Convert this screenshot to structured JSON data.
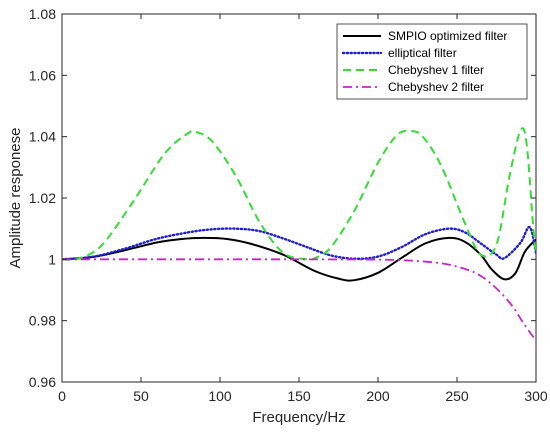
{
  "chart_data": {
    "type": "line",
    "title": "",
    "xlabel": "Frequency/Hz",
    "ylabel": "Amplitude responese",
    "xlim": [
      0,
      300
    ],
    "ylim": [
      0.96,
      1.08
    ],
    "xticks": [
      0,
      50,
      100,
      150,
      200,
      250,
      300
    ],
    "yticks": [
      0.96,
      0.98,
      1,
      1.02,
      1.04,
      1.06,
      1.08
    ],
    "xtick_labels": [
      "0",
      "50",
      "100",
      "150",
      "200",
      "250",
      "300"
    ],
    "ytick_labels": [
      "0.96",
      "0.98",
      "1",
      "1.02",
      "1.04",
      "1.06",
      "1.08"
    ],
    "grid": false,
    "legend_position": "top-right",
    "series": [
      {
        "name": "SMPIO optimized filter",
        "color": "#000000",
        "style": "solid",
        "x": [
          0,
          20,
          40,
          60,
          75,
          90,
          105,
          120,
          140,
          160,
          175,
          185,
          200,
          215,
          230,
          245,
          255,
          265,
          272,
          280,
          287,
          293,
          300
        ],
        "y": [
          1.0,
          1.0008,
          1.003,
          1.0055,
          1.0066,
          1.007,
          1.0066,
          1.005,
          1.0015,
          0.9962,
          0.9937,
          0.9932,
          0.9956,
          1.0005,
          1.0052,
          1.007,
          1.0057,
          1.0015,
          0.9967,
          0.9935,
          0.9955,
          1.0025,
          1.0065
        ]
      },
      {
        "name": "elliptical filter",
        "color": "#1f1fcc",
        "style": "dotted",
        "x": [
          0,
          20,
          40,
          60,
          80,
          95,
          110,
          125,
          140,
          155,
          170,
          185,
          200,
          215,
          230,
          245,
          255,
          265,
          275,
          280,
          290,
          296,
          300
        ],
        "y": [
          1.0,
          1.0009,
          1.0035,
          1.0067,
          1.0088,
          1.0098,
          1.01,
          1.0092,
          1.0068,
          1.004,
          1.0013,
          1.0002,
          1.0009,
          1.004,
          1.0082,
          1.01,
          1.0088,
          1.0052,
          1.0015,
          1.0004,
          1.0053,
          1.0105,
          1.0022
        ]
      },
      {
        "name": "Chebyshev 1 filter",
        "color": "#33dd33",
        "style": "dashed",
        "x": [
          0,
          10,
          25,
          45,
          65,
          80,
          85,
          95,
          110,
          125,
          140,
          155,
          160,
          170,
          185,
          200,
          212,
          220,
          228,
          240,
          255,
          265,
          275,
          283,
          290,
          294,
          298,
          300
        ],
        "y": [
          1.0,
          1.0002,
          1.0045,
          1.0188,
          1.0345,
          1.0412,
          1.0415,
          1.0385,
          1.0272,
          1.0122,
          1.0021,
          1.0,
          1.0004,
          1.0038,
          1.0158,
          1.0315,
          1.0405,
          1.0418,
          1.0402,
          1.0305,
          1.0118,
          1.0015,
          1.0048,
          1.0265,
          1.0418,
          1.038,
          1.012,
          1.0015
        ]
      },
      {
        "name": "Chebyshev 2 filter",
        "color": "#cc22cc",
        "style": "dashdot",
        "x": [
          0,
          50,
          100,
          150,
          200,
          220,
          240,
          255,
          265,
          275,
          285,
          292,
          300
        ],
        "y": [
          1.0,
          1.0,
          1.0,
          1.0,
          0.9999,
          0.9996,
          0.9987,
          0.9969,
          0.9946,
          0.9905,
          0.9848,
          0.9792,
          0.9735
        ]
      }
    ]
  }
}
